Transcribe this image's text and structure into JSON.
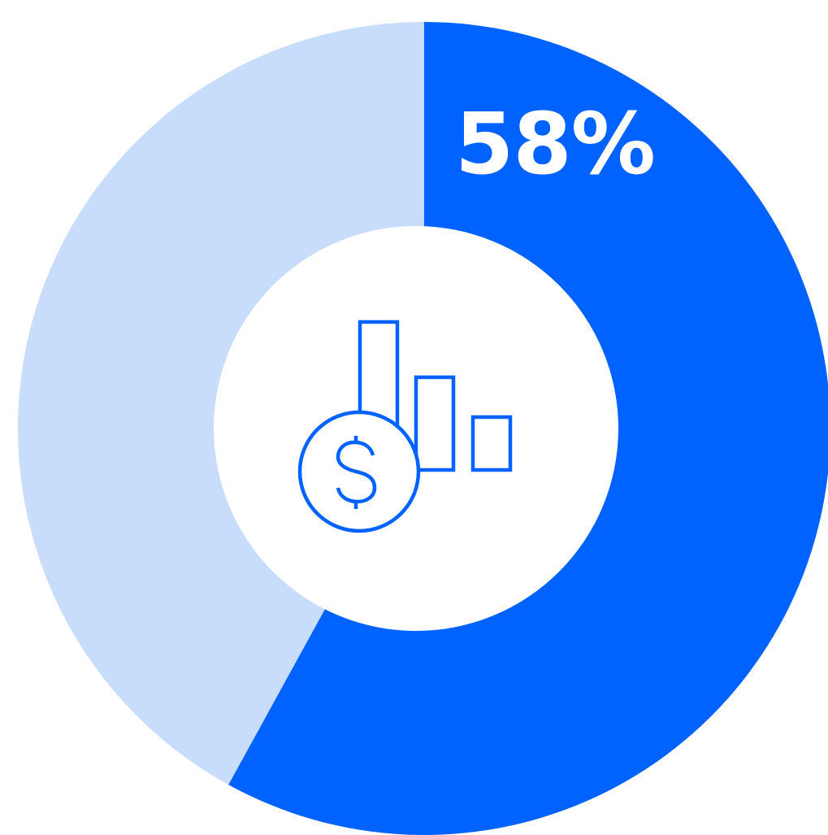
{
  "chart_data": {
    "type": "pie",
    "variant": "donut",
    "slices": [
      {
        "value": 58,
        "label": "58%",
        "color": "#0062FF"
      },
      {
        "value": 42,
        "label": "",
        "color": "#C8DCFB"
      }
    ],
    "title": "",
    "legend": "none",
    "center_icon": "dollar-coin-bar-chart-icon",
    "icon_color": "#0062FF"
  }
}
